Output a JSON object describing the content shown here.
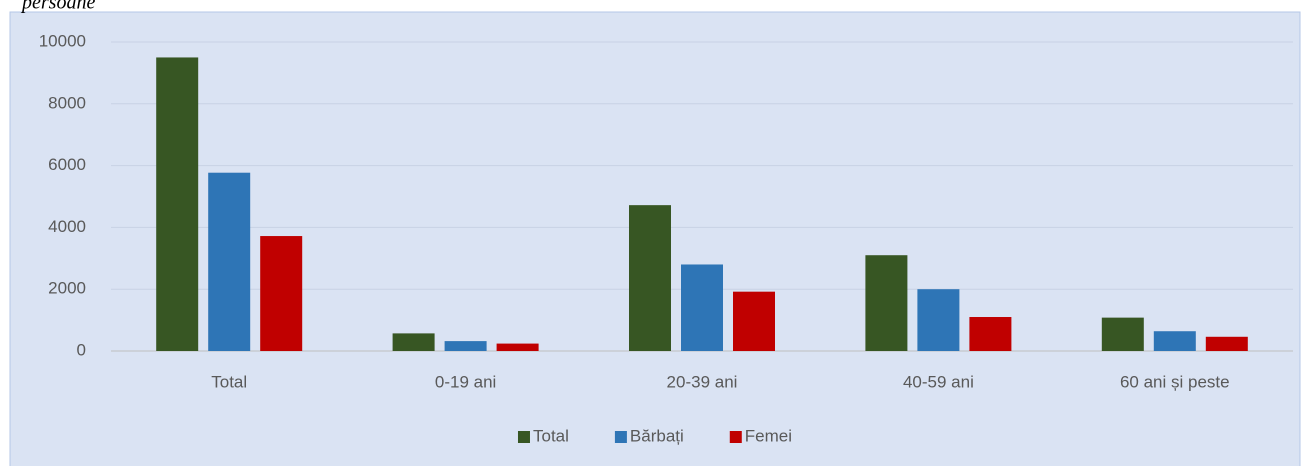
{
  "chart_data": {
    "type": "bar",
    "y_label": "persoane",
    "categories": [
      "Total",
      "0-19 ani",
      "20-39 ani",
      "40-59 ani",
      "60 ani și peste"
    ],
    "series": [
      {
        "name": "Total",
        "color": "#375623",
        "values": [
          9500,
          570,
          4720,
          3100,
          1080
        ]
      },
      {
        "name": "Bărbați",
        "color": "#2e75b6",
        "values": [
          5770,
          320,
          2800,
          2000,
          640
        ]
      },
      {
        "name": "Femei",
        "color": "#c00000",
        "values": [
          3720,
          240,
          1920,
          1100,
          460
        ]
      }
    ],
    "ylim": [
      0,
      10000
    ],
    "yticks": [
      0,
      2000,
      4000,
      6000,
      8000,
      10000
    ],
    "grid": true,
    "legend": "bottom"
  }
}
